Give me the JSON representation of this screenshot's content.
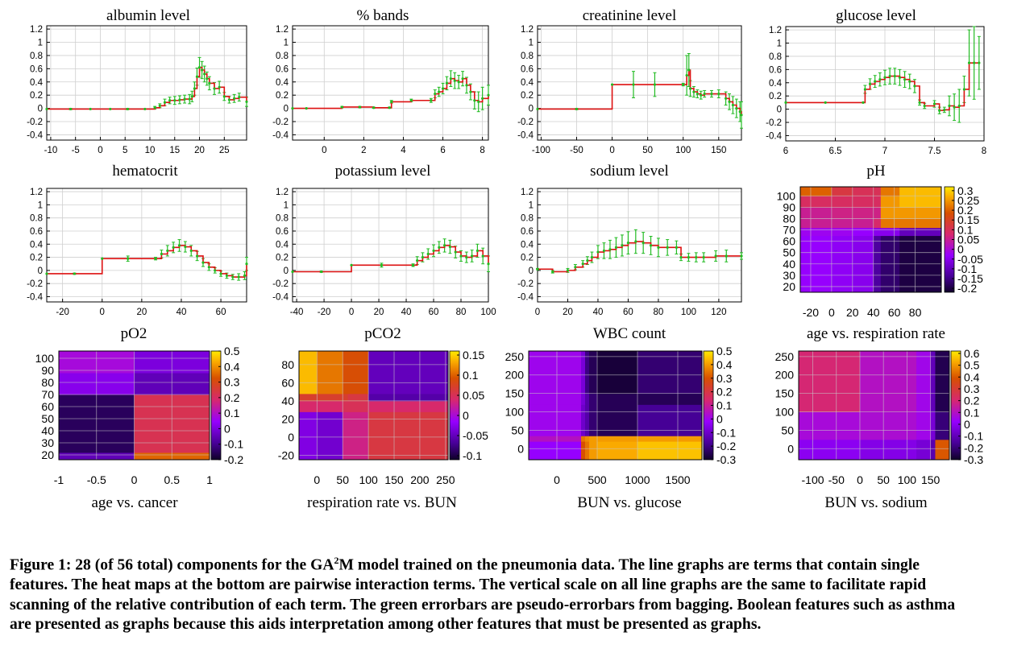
{
  "chart_data": [
    {
      "type": "line",
      "title": "albumin level",
      "xticks": [
        -10,
        -5,
        0,
        5,
        10,
        15,
        20,
        25
      ],
      "xlim": [
        -10.8,
        29.5
      ],
      "yticks": [
        -0.4,
        -0.2,
        0,
        0.2,
        0.4,
        0.6,
        0.8,
        1,
        1.2
      ],
      "ylim": [
        -0.48,
        1.25
      ],
      "x": [
        -10.8,
        -6,
        -2,
        2,
        5.5,
        9,
        11,
        12,
        13,
        14,
        15,
        16,
        17,
        18,
        18.5,
        19,
        19.5,
        20,
        20.5,
        21,
        21.5,
        22,
        23,
        24,
        25,
        26,
        27,
        28,
        29.5
      ],
      "y": [
        -0.01,
        -0.01,
        -0.01,
        -0.01,
        -0.01,
        -0.01,
        0.01,
        0.04,
        0.09,
        0.12,
        0.12,
        0.13,
        0.14,
        0.14,
        0.18,
        0.3,
        0.48,
        0.62,
        0.58,
        0.52,
        0.45,
        0.38,
        0.3,
        0.32,
        0.18,
        0.13,
        0.15,
        0.17,
        0.1
      ],
      "err": [
        0,
        0.01,
        0,
        0,
        0.01,
        0,
        0.02,
        0.03,
        0.05,
        0.05,
        0.06,
        0.06,
        0.06,
        0.07,
        0.08,
        0.1,
        0.13,
        0.15,
        0.13,
        0.12,
        0.1,
        0.1,
        0.09,
        0.09,
        0.06,
        0.05,
        0.06,
        0.06,
        0.07
      ]
    },
    {
      "type": "line",
      "title": "% bands",
      "xticks": [
        0,
        2,
        4,
        6,
        8
      ],
      "xlim": [
        -1.6,
        8.3
      ],
      "yticks": [
        -0.4,
        -0.2,
        0,
        0.2,
        0.4,
        0.6,
        0.8,
        1,
        1.2
      ],
      "ylim": [
        -0.48,
        1.25
      ],
      "x": [
        -1.6,
        -0.9,
        0.9,
        1.8,
        2.5,
        3.3,
        3.4,
        4.4,
        5.4,
        5.6,
        5.8,
        6.0,
        6.2,
        6.4,
        6.6,
        6.8,
        7.0,
        7.2,
        7.4,
        7.6,
        7.8,
        8.0,
        8.3
      ],
      "y": [
        0,
        0,
        0.02,
        0.02,
        0.01,
        0.01,
        0.1,
        0.12,
        0.12,
        0.22,
        0.25,
        0.3,
        0.38,
        0.45,
        0.42,
        0.4,
        0.45,
        0.35,
        0.25,
        0.12,
        0.1,
        0.15,
        0.2
      ],
      "err": [
        0,
        0,
        0.01,
        0.01,
        0.01,
        0.01,
        0.02,
        0.02,
        0.03,
        0.06,
        0.07,
        0.08,
        0.1,
        0.12,
        0.12,
        0.1,
        0.11,
        0.12,
        0.12,
        0.13,
        0.15,
        0.17,
        0.15
      ]
    },
    {
      "type": "line",
      "title": "creatinine level",
      "xticks": [
        -100,
        -50,
        0,
        50,
        100,
        150
      ],
      "xlim": [
        -105,
        182
      ],
      "yticks": [
        -0.4,
        -0.2,
        0,
        0.2,
        0.4,
        0.6,
        0.8,
        1,
        1.2
      ],
      "ylim": [
        -0.48,
        1.25
      ],
      "x": [
        -105,
        -50,
        0,
        30,
        60,
        100,
        105,
        108,
        110,
        115,
        120,
        125,
        130,
        140,
        150,
        160,
        165,
        170,
        175,
        180,
        182
      ],
      "y": [
        -0.01,
        -0.01,
        0.36,
        0.36,
        0.36,
        0.36,
        0.5,
        0.58,
        0.3,
        0.25,
        0.22,
        0.2,
        0.22,
        0.22,
        0.22,
        0.15,
        0.1,
        0.05,
        0.0,
        -0.05,
        -0.1
      ],
      "err": [
        0,
        0.01,
        0,
        0.2,
        0.18,
        0.02,
        0.3,
        0.25,
        0.12,
        0.08,
        0.06,
        0.06,
        0.05,
        0.05,
        0.06,
        0.1,
        0.12,
        0.13,
        0.14,
        0.15,
        0.2
      ]
    },
    {
      "type": "line",
      "title": "glucose level",
      "xticks": [
        6,
        6.5,
        7,
        7.5,
        8
      ],
      "xlim": [
        6,
        8.0
      ],
      "yticks": [
        -0.4,
        -0.2,
        0,
        0.2,
        0.4,
        0.6,
        0.8,
        1,
        1.2
      ],
      "ylim": [
        -0.48,
        1.25
      ],
      "x": [
        6,
        6.4,
        6.78,
        6.8,
        6.85,
        6.9,
        6.95,
        7.0,
        7.05,
        7.1,
        7.15,
        7.2,
        7.25,
        7.3,
        7.35,
        7.4,
        7.5,
        7.55,
        7.6,
        7.65,
        7.7,
        7.75,
        7.8,
        7.85,
        7.9,
        7.95
      ],
      "y": [
        0.1,
        0.1,
        0.1,
        0.3,
        0.38,
        0.42,
        0.45,
        0.48,
        0.5,
        0.5,
        0.48,
        0.45,
        0.42,
        0.35,
        0.1,
        0.05,
        0.08,
        -0.02,
        -0.01,
        0.05,
        0.03,
        0.05,
        0.3,
        0.7,
        0.7,
        0.7
      ],
      "err": [
        0,
        0,
        0,
        0.06,
        0.08,
        0.09,
        0.1,
        0.11,
        0.12,
        0.12,
        0.12,
        0.12,
        0.11,
        0.1,
        0.04,
        0.04,
        0.05,
        0.05,
        0.04,
        0.15,
        0.2,
        0.25,
        0.2,
        0.5,
        0.55,
        0.4
      ]
    },
    {
      "type": "line",
      "title": "hematocrit",
      "xticks": [
        -20,
        0,
        20,
        40,
        60
      ],
      "xlim": [
        -28,
        73
      ],
      "yticks": [
        -0.4,
        -0.2,
        0,
        0.2,
        0.4,
        0.6,
        0.8,
        1,
        1.2
      ],
      "ylim": [
        -0.48,
        1.25
      ],
      "x": [
        -28,
        -14,
        0,
        13,
        27,
        30,
        33,
        36,
        39,
        42,
        45,
        48,
        51,
        54,
        57,
        60,
        63,
        66,
        69,
        72,
        73
      ],
      "y": [
        -0.05,
        -0.05,
        0.18,
        0.18,
        0.18,
        0.25,
        0.3,
        0.35,
        0.38,
        0.36,
        0.3,
        0.22,
        0.12,
        0.05,
        0.0,
        -0.05,
        -0.08,
        -0.1,
        -0.1,
        -0.08,
        0.1
      ],
      "err": [
        0,
        0.01,
        0,
        0.04,
        0.02,
        0.06,
        0.08,
        0.08,
        0.09,
        0.08,
        0.08,
        0.07,
        0.06,
        0.05,
        0.04,
        0.04,
        0.04,
        0.04,
        0.05,
        0.06,
        0.1
      ]
    },
    {
      "type": "line",
      "title": "potassium level",
      "xticks": [
        -40,
        -20,
        0,
        20,
        40,
        60,
        80,
        100
      ],
      "xlim": [
        -43,
        100
      ],
      "yticks": [
        -0.4,
        -0.2,
        0,
        0.2,
        0.4,
        0.6,
        0.8,
        1,
        1.2
      ],
      "ylim": [
        -0.48,
        1.25
      ],
      "x": [
        -43,
        -22,
        0,
        22,
        45,
        48,
        52,
        56,
        60,
        64,
        68,
        72,
        76,
        80,
        84,
        88,
        92,
        96,
        100
      ],
      "y": [
        -0.02,
        -0.02,
        0.08,
        0.08,
        0.08,
        0.15,
        0.2,
        0.25,
        0.3,
        0.35,
        0.38,
        0.36,
        0.28,
        0.22,
        0.2,
        0.22,
        0.3,
        0.22,
        0.1
      ],
      "err": [
        0,
        0.01,
        0,
        0.03,
        0.02,
        0.06,
        0.07,
        0.08,
        0.09,
        0.09,
        0.1,
        0.1,
        0.09,
        0.08,
        0.08,
        0.09,
        0.1,
        0.12,
        0.12
      ]
    },
    {
      "type": "line",
      "title": "sodium level",
      "xticks": [
        0,
        20,
        40,
        60,
        80,
        100,
        120
      ],
      "xlim": [
        0,
        135
      ],
      "yticks": [
        -0.4,
        -0.2,
        0,
        0.2,
        0.4,
        0.6,
        0.8,
        1,
        1.2
      ],
      "ylim": [
        -0.48,
        1.25
      ],
      "x": [
        0,
        10,
        20,
        25,
        30,
        33,
        36,
        40,
        44,
        48,
        52,
        56,
        60,
        65,
        70,
        75,
        80,
        86,
        92,
        95,
        100,
        105,
        110,
        118,
        125,
        135
      ],
      "y": [
        0.02,
        -0.02,
        0.0,
        0.05,
        0.1,
        0.15,
        0.2,
        0.28,
        0.3,
        0.32,
        0.35,
        0.38,
        0.42,
        0.44,
        0.42,
        0.38,
        0.35,
        0.35,
        0.35,
        0.2,
        0.2,
        0.2,
        0.2,
        0.22,
        0.22,
        0.22
      ],
      "err": [
        0.01,
        0.02,
        0.03,
        0.04,
        0.05,
        0.06,
        0.08,
        0.1,
        0.12,
        0.14,
        0.15,
        0.16,
        0.17,
        0.18,
        0.16,
        0.14,
        0.14,
        0.12,
        0.1,
        0.05,
        0.06,
        0.07,
        0.07,
        0.08,
        0.09,
        0.05
      ]
    },
    {
      "type": "heatmap",
      "title": "pH",
      "xlabel": "age vs. respiration rate",
      "xticks": [
        -20,
        0,
        20,
        40,
        60,
        80
      ],
      "xlim": [
        -30,
        105
      ],
      "yticks": [
        20,
        30,
        40,
        50,
        60,
        70,
        80,
        90,
        100
      ],
      "ylim": [
        15,
        108
      ],
      "cbticks": [
        0.3,
        0.25,
        0.2,
        0.15,
        0.1,
        0.05,
        0,
        -0.05,
        -0.1,
        -0.15,
        -0.2
      ],
      "cblim": [
        -0.22,
        0.32
      ],
      "xedges": [
        -30,
        0,
        20,
        40,
        47,
        65,
        105
      ],
      "yedges": [
        15,
        65,
        72,
        80,
        90,
        100,
        108
      ],
      "z": [
        [
          -0.03,
          -0.04,
          -0.05,
          -0.13,
          -0.17,
          -0.2
        ],
        [
          -0.02,
          -0.02,
          -0.03,
          -0.05,
          -0.05,
          -0.1
        ],
        [
          0.05,
          0.05,
          0.05,
          0.08,
          0.22,
          0.22
        ],
        [
          0.05,
          0.06,
          0.06,
          0.06,
          0.25,
          0.25
        ],
        [
          0.09,
          0.09,
          0.09,
          0.09,
          0.25,
          0.28
        ],
        [
          0.2,
          0.12,
          0.1,
          0.1,
          0.22,
          0.28
        ]
      ]
    },
    {
      "type": "heatmap",
      "title": "pO2",
      "xlabel": "age vs. cancer",
      "xticks": [
        -1,
        -0.5,
        0,
        0.5,
        1
      ],
      "xlim": [
        -1,
        1
      ],
      "yticks": [
        20,
        30,
        40,
        50,
        60,
        70,
        80,
        90,
        100
      ],
      "ylim": [
        16,
        106
      ],
      "cbticks": [
        0.5,
        0.4,
        0.3,
        0.2,
        0.1,
        0,
        -0.1,
        -0.2
      ],
      "cblim": [
        -0.2,
        0.5
      ],
      "xedges": [
        -1,
        0,
        1
      ],
      "yedges": [
        16,
        22,
        70,
        88,
        106
      ],
      "z": [
        [
          -0.05,
          0.35
        ],
        [
          -0.15,
          0.22
        ],
        [
          0.02,
          -0.05
        ],
        [
          0.08,
          0.0
        ]
      ]
    },
    {
      "type": "heatmap",
      "title": "pCO2",
      "xlabel": "respiration rate vs. BUN",
      "xticks": [
        0,
        50,
        100,
        150,
        200,
        250
      ],
      "xlim": [
        -35,
        255
      ],
      "yticks": [
        -20,
        0,
        20,
        40,
        60,
        80
      ],
      "ylim": [
        -25,
        95
      ],
      "cbticks": [
        0.15,
        0.1,
        0.05,
        0,
        -0.05,
        -0.1
      ],
      "cblim": [
        -0.11,
        0.16
      ],
      "xedges": [
        -35,
        0,
        50,
        60,
        100,
        255
      ],
      "yedges": [
        -25,
        28,
        40,
        48,
        95
      ],
      "z": [
        [
          -0.03,
          -0.04,
          0.03,
          0.03,
          0.06
        ],
        [
          0.04,
          0.04,
          0.05,
          0.05,
          0.04
        ],
        [
          0.07,
          0.07,
          0.07,
          0.06,
          -0.06
        ],
        [
          0.14,
          0.11,
          0.09,
          0.09,
          -0.05
        ]
      ]
    },
    {
      "type": "heatmap",
      "title": "WBC count",
      "xlabel": "BUN vs. glucose",
      "xticks": [
        0,
        500,
        1000,
        1500
      ],
      "xlim": [
        -350,
        1800
      ],
      "yticks": [
        0,
        50,
        100,
        150,
        200,
        250
      ],
      "ylim": [
        -30,
        265
      ],
      "cbticks": [
        0.5,
        0.4,
        0.3,
        0.2,
        0.1,
        0,
        -0.1,
        -0.2,
        -0.3
      ],
      "cblim": [
        -0.3,
        0.5
      ],
      "xedges": [
        -350,
        300,
        350,
        400,
        500,
        1000,
        1800
      ],
      "yedges": [
        -30,
        20,
        35,
        120,
        150,
        265
      ],
      "z": [
        [
          -0.02,
          0.3,
          0.35,
          0.4,
          0.42,
          0.45
        ],
        [
          0.05,
          0.35,
          0.38,
          0.4,
          0.4,
          0.4
        ],
        [
          0.0,
          -0.1,
          -0.15,
          -0.22,
          -0.25,
          -0.18
        ],
        [
          0.0,
          -0.08,
          -0.15,
          -0.22,
          -0.25,
          -0.25
        ],
        [
          0.0,
          -0.08,
          -0.2,
          -0.25,
          -0.28,
          -0.22
        ]
      ]
    },
    {
      "type": "heatmap",
      "title": "",
      "xlabel": "BUN vs. sodium",
      "xticks": [
        -100,
        -50,
        0,
        50,
        100,
        150
      ],
      "xlim": [
        -130,
        190
      ],
      "yticks": [
        0,
        50,
        100,
        150,
        200,
        250
      ],
      "ylim": [
        -30,
        265
      ],
      "cbticks": [
        0.6,
        0.5,
        0.4,
        0.3,
        0.2,
        0.1,
        0,
        -0.1,
        -0.2,
        -0.3
      ],
      "cblim": [
        -0.3,
        0.62
      ],
      "xedges": [
        -130,
        0,
        120,
        150,
        160,
        190
      ],
      "yedges": [
        -30,
        25,
        100,
        265
      ],
      "z": [
        [
          0.0,
          -0.02,
          -0.05,
          -0.12,
          0.4
        ],
        [
          0.07,
          0.08,
          0.05,
          -0.05,
          -0.2
        ],
        [
          0.2,
          0.1,
          0.05,
          -0.1,
          -0.25
        ]
      ]
    }
  ],
  "caption": {
    "before": "Figure 1: 28 (of 56 total) components for the GA",
    "sup": "2",
    "after": "M model trained on the pneumonia data. The line graphs are terms that contain single features. The heat maps at the bottom are pairwise interaction terms. The vertical scale on all line graphs are the same to facilitate rapid scanning of the relative contribution of each term. The green errorbars are pseudo-errorbars from bagging. Boolean features such as asthma are presented as graphs because this aids interpretation among other features that must be presented as graphs."
  }
}
